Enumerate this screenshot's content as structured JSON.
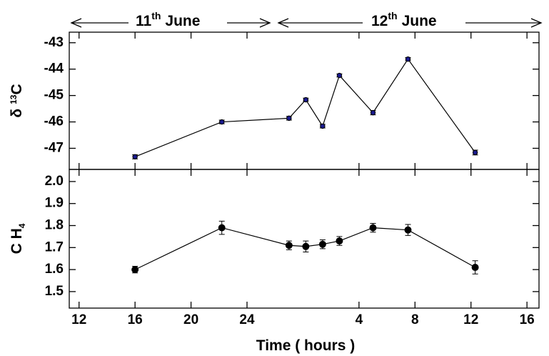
{
  "heading": [
    {
      "day": "11",
      "suffix": "th",
      "month": "June"
    },
    {
      "day": "12",
      "suffix": "th",
      "month": "June"
    }
  ],
  "chart_data": [
    {
      "type": "line",
      "ylabel": {
        "symbol": "δ",
        "sup": "13",
        "element": "C"
      },
      "x": [
        16,
        22.2,
        27,
        28.2,
        29.4,
        30.6,
        33,
        35.5,
        40.3
      ],
      "values": [
        -47.32,
        -46.0,
        -45.86,
        -45.16,
        -46.16,
        -44.24,
        -45.65,
        -43.62,
        -47.16
      ],
      "errors": [
        0.08,
        0.07,
        0.07,
        0.06,
        0.07,
        0.06,
        0.08,
        0.06,
        0.09
      ],
      "color": "#1a1a8c",
      "xlim": [
        11.3,
        44.86
      ],
      "ylim": [
        -47.8,
        -42.6
      ],
      "xticks": [
        12,
        16,
        20,
        24,
        {
          "value": 32,
          "label": "4"
        },
        {
          "value": 36,
          "label": "8"
        },
        {
          "value": 40,
          "label": "12"
        },
        {
          "value": 44,
          "label": "16"
        }
      ],
      "yticks": [
        -47,
        -46,
        -45,
        -44,
        -43
      ]
    },
    {
      "type": "line",
      "ylabel": {
        "main": "C H",
        "sub": "4"
      },
      "xlabel": "Time ( hours )",
      "x": [
        16,
        22.2,
        27,
        28.2,
        29.4,
        30.6,
        33,
        35.5,
        40.3
      ],
      "values": [
        1.6,
        1.79,
        1.71,
        1.705,
        1.715,
        1.73,
        1.79,
        1.78,
        1.61
      ],
      "errors": [
        0.015,
        0.03,
        0.02,
        0.025,
        0.02,
        0.02,
        0.02,
        0.025,
        0.03
      ],
      "color": "#000000",
      "xlim": [
        11.3,
        44.86
      ],
      "ylim": [
        1.425,
        2.055
      ],
      "xticks": [
        12,
        16,
        20,
        24,
        {
          "value": 32,
          "label": "4"
        },
        {
          "value": 36,
          "label": "8"
        },
        {
          "value": 40,
          "label": "12"
        },
        {
          "value": 44,
          "label": "16"
        }
      ],
      "yticks": [
        1.5,
        1.6,
        1.7,
        1.8,
        1.9,
        {
          "value": 2,
          "label": "2.0"
        }
      ]
    }
  ]
}
